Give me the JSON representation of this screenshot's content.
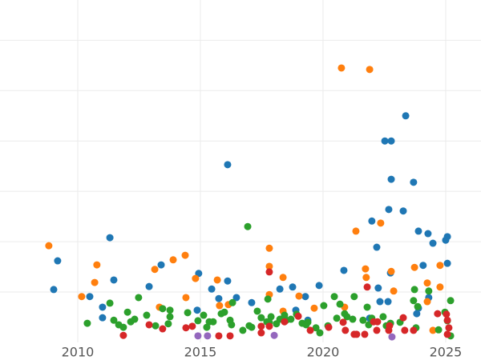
{
  "chart_data": {
    "type": "scatter",
    "grid": true,
    "xlim": [
      2006.83,
      2026.44
    ],
    "xticks": [
      2010,
      2015,
      2020,
      2025
    ],
    "ylim": [
      0,
      6.8
    ],
    "yticks": [
      1,
      2,
      3,
      4,
      5,
      6
    ],
    "series": [
      {
        "color": "#1f77b4",
        "x": [
          2009.02,
          2009.18,
          2010.49,
          2011.01,
          2011.01,
          2011.31,
          2011.47,
          2012.91,
          2013.4,
          2014.93,
          2014.87,
          2015.46,
          2015.75,
          2016.11,
          2016.11,
          2016.47,
          2017.09,
          2018.24,
          2018.76,
          2018.89,
          2019.28,
          2019.84,
          2020.85,
          2021.99,
          2022.19,
          2022.25,
          2022.32,
          2022.52,
          2022.78,
          2022.68,
          2022.75,
          2022.65,
          2022.78,
          2023.37,
          2023.27,
          2023.69,
          2023.89,
          2024.08,
          2024.28,
          2024.31,
          2024.48,
          2023.89,
          2025.0,
          2025.07,
          2025.07,
          2023.82,
          2019.38,
          2021.9
        ],
        "y": [
          1.05,
          1.62,
          0.91,
          0.7,
          0.49,
          2.08,
          1.24,
          1.11,
          1.54,
          1.37,
          0.64,
          1.06,
          0.87,
          1.22,
          3.53,
          0.89,
          0.79,
          1.06,
          1.1,
          0.64,
          0.91,
          1.13,
          1.43,
          2.41,
          1.89,
          1.08,
          0.81,
          4.0,
          4.0,
          2.64,
          1.38,
          0.81,
          3.24,
          4.5,
          2.61,
          3.18,
          2.21,
          1.53,
          2.16,
          0.89,
          1.97,
          0.68,
          2.03,
          2.1,
          1.57,
          0.57,
          0.44,
          0.48
        ]
      },
      {
        "color": "#ff7f0e",
        "x": [
          2008.82,
          2020.75,
          2021.9,
          2010.78,
          2010.69,
          2010.16,
          2013.14,
          2013.89,
          2014.38,
          2014.41,
          2014.8,
          2015.69,
          2015.78,
          2016.14,
          2017.81,
          2017.81,
          2017.81,
          2018.37,
          2018.37,
          2019.02,
          2019.64,
          2021.34,
          2021.73,
          2021.76,
          2022.35,
          2022.78,
          2022.88,
          2020.88,
          2023.73,
          2024.25,
          2024.77,
          2024.77,
          2024.25,
          2024.48,
          2013.33
        ],
        "y": [
          1.92,
          5.45,
          5.42,
          1.54,
          1.19,
          0.91,
          1.45,
          1.64,
          1.73,
          0.89,
          1.27,
          1.24,
          0.73,
          0.75,
          1.87,
          1.51,
          0.95,
          1.29,
          0.62,
          0.92,
          0.68,
          2.21,
          1.46,
          1.29,
          2.37,
          1.41,
          1.02,
          0.7,
          1.49,
          0.81,
          1.53,
          1.1,
          1.18,
          0.24,
          0.7
        ]
      },
      {
        "color": "#2ca02c",
        "x": [
          2010.39,
          2011.31,
          2011.47,
          2011.67,
          2011.86,
          2012.03,
          2012.16,
          2012.32,
          2012.48,
          2012.81,
          2013.17,
          2013.46,
          2013.69,
          2013.76,
          2013.76,
          2014.48,
          2014.9,
          2015.13,
          2015.26,
          2015.36,
          2015.52,
          2015.85,
          2015.98,
          2016.21,
          2016.27,
          2016.31,
          2016.73,
          2016.93,
          2016.99,
          2017.09,
          2017.32,
          2017.48,
          2017.71,
          2017.75,
          2017.81,
          2017.88,
          2018.1,
          2018.24,
          2018.43,
          2018.5,
          2018.69,
          2018.92,
          2019.15,
          2019.31,
          2019.38,
          2019.71,
          2019.87,
          2020.03,
          2020.2,
          2020.46,
          2020.56,
          2020.69,
          2020.88,
          2020.98,
          2021.21,
          2021.27,
          2021.63,
          2021.8,
          2021.86,
          2021.99,
          2022.45,
          2022.58,
          2022.75,
          2023.14,
          2023.69,
          2023.73,
          2023.79,
          2023.86,
          2024.31,
          2024.71,
          2024.97,
          2025.07,
          2025.2,
          2025.2
        ],
        "y": [
          0.38,
          0.78,
          0.44,
          0.35,
          0.3,
          0.6,
          0.41,
          0.46,
          0.89,
          0.54,
          0.33,
          0.67,
          0.37,
          0.51,
          0.64,
          0.59,
          0.43,
          0.54,
          0.3,
          0.41,
          0.41,
          0.57,
          0.6,
          0.44,
          0.35,
          0.79,
          0.24,
          2.3,
          0.33,
          0.3,
          0.62,
          0.49,
          0.41,
          0.86,
          0.4,
          0.51,
          0.37,
          0.46,
          0.54,
          0.44,
          0.46,
          0.56,
          0.38,
          0.35,
          0.4,
          0.29,
          0.19,
          0.73,
          0.33,
          0.91,
          0.48,
          0.76,
          0.57,
          0.51,
          0.46,
          0.91,
          0.44,
          0.7,
          0.35,
          0.48,
          0.51,
          0.33,
          0.38,
          0.4,
          0.83,
          1.05,
          0.29,
          0.71,
          1.02,
          0.25,
          0.6,
          0.43,
          0.83,
          0.13
        ]
      },
      {
        "color": "#d62728",
        "x": [
          2011.86,
          2012.91,
          2013.46,
          2014.41,
          2014.67,
          2015.75,
          2016.21,
          2017.48,
          2017.48,
          2017.81,
          2017.81,
          2018.43,
          2018.99,
          2019.48,
          2020.23,
          2020.82,
          2020.91,
          2021.27,
          2021.37,
          2021.7,
          2021.8,
          2022.06,
          2022.19,
          2022.22,
          2022.68,
          2022.71,
          2023.27,
          2023.33,
          2023.69,
          2024.67,
          2025.07,
          2025.07,
          2025.13,
          2025.03
        ],
        "y": [
          0.14,
          0.35,
          0.27,
          0.29,
          0.32,
          0.13,
          0.13,
          0.32,
          0.19,
          1.4,
          0.32,
          0.41,
          0.52,
          0.24,
          0.3,
          0.4,
          0.24,
          0.16,
          0.16,
          0.16,
          1.1,
          0.41,
          0.24,
          0.41,
          0.24,
          0.33,
          0.49,
          0.24,
          0.24,
          0.57,
          0.44,
          0.16,
          0.29,
          0.56
        ]
      },
      {
        "color": "#9467bd",
        "x": [
          2014.9,
          2015.29,
          2018.01,
          2022.81
        ],
        "y": [
          0.13,
          0.13,
          0.14,
          0.11
        ]
      }
    ]
  }
}
